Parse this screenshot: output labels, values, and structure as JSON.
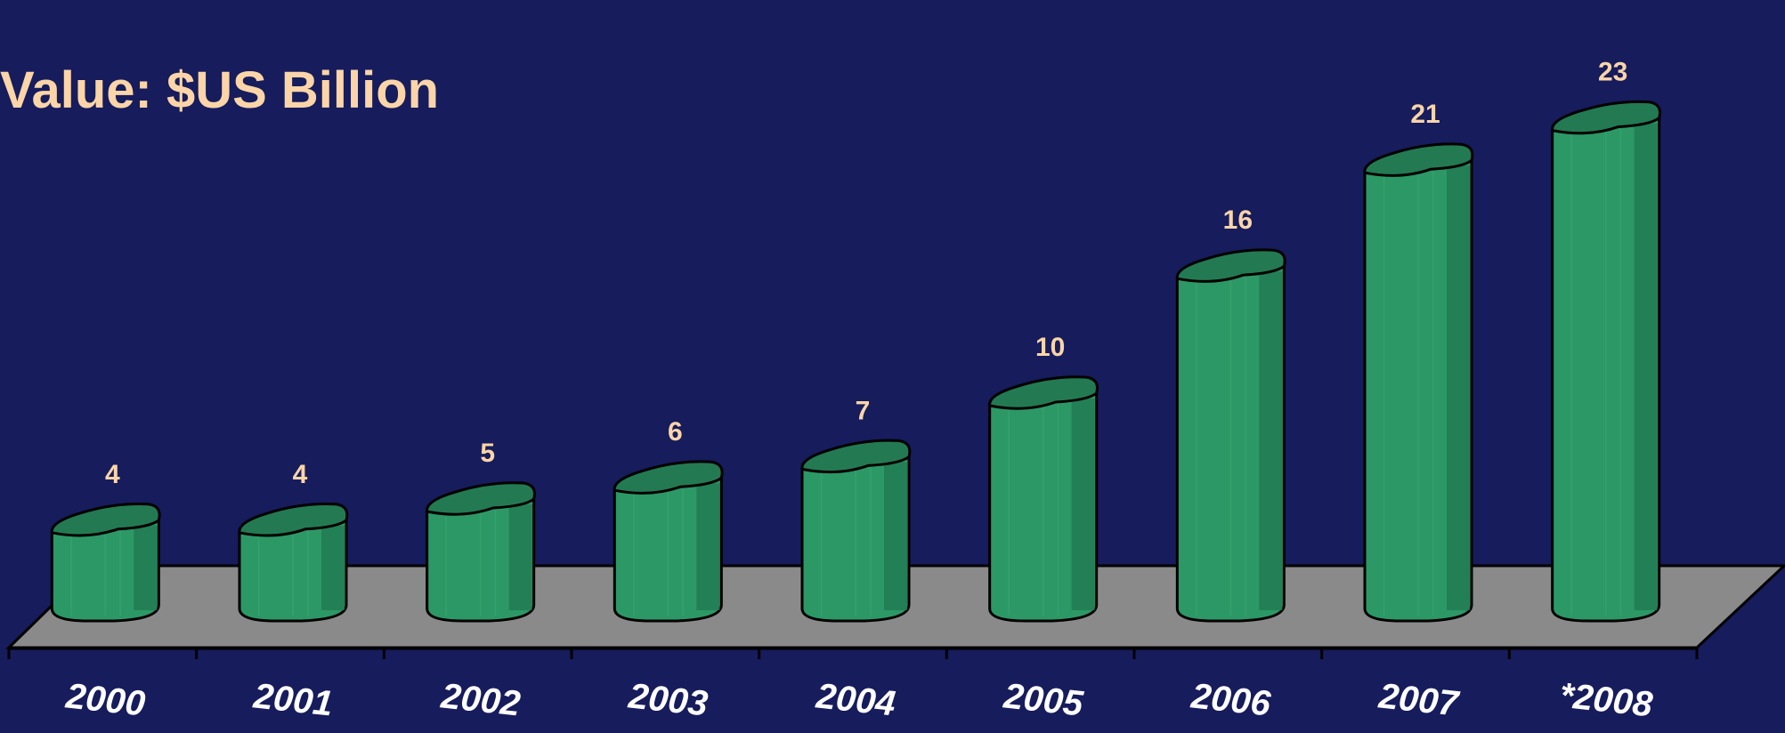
{
  "chart_data": {
    "type": "bar",
    "title": "Value: $US Billion",
    "categories": [
      "2000",
      "2001",
      "2002",
      "2003",
      "2004",
      "2005",
      "2006",
      "2007",
      "*2008"
    ],
    "values": [
      4,
      4,
      5,
      6,
      7,
      10,
      16,
      21,
      23
    ],
    "data_labels": [
      "4",
      "4",
      "5",
      "6",
      "7",
      "10",
      "16",
      "21",
      "23"
    ],
    "ylim": [
      0,
      23
    ],
    "grid": false,
    "legend": "none"
  },
  "colors": {
    "background": "#161c5c",
    "text": "#fbd5a8",
    "bar_front": "#2c9866",
    "bar_side": "#227a52",
    "bar_top": "#237a52",
    "floor": "#8a8a8a"
  }
}
